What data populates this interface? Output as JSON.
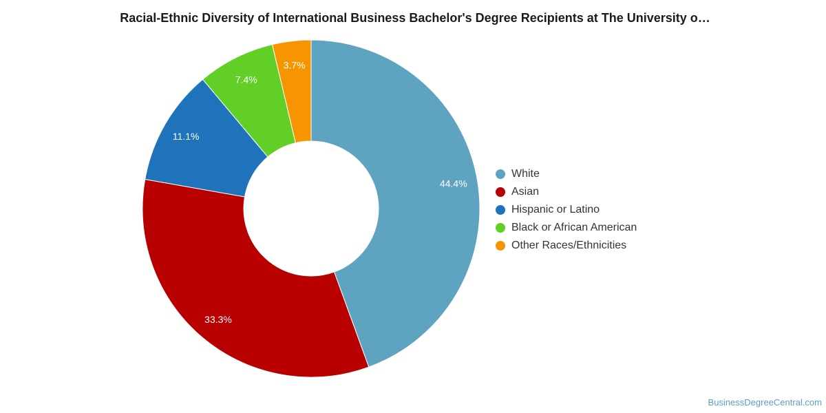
{
  "chart_data": {
    "type": "pie",
    "title": "Racial-Ethnic Diversity of International Business Bachelor's Degree Recipients at The University o…",
    "categories": [
      "White",
      "Asian",
      "Hispanic or Latino",
      "Black or African American",
      "Other Races/Ethnicities"
    ],
    "values": [
      44.4,
      33.3,
      11.1,
      7.4,
      3.7
    ],
    "labels": [
      "44.4%",
      "33.3%",
      "11.1%",
      "7.4%",
      "3.7%"
    ],
    "colors": [
      "#5ea3c0",
      "#b80000",
      "#1f73ba",
      "#62cf26",
      "#f79500"
    ],
    "donut": true,
    "legend_position": "right"
  },
  "watermark": "BusinessDegreeCentral.com"
}
